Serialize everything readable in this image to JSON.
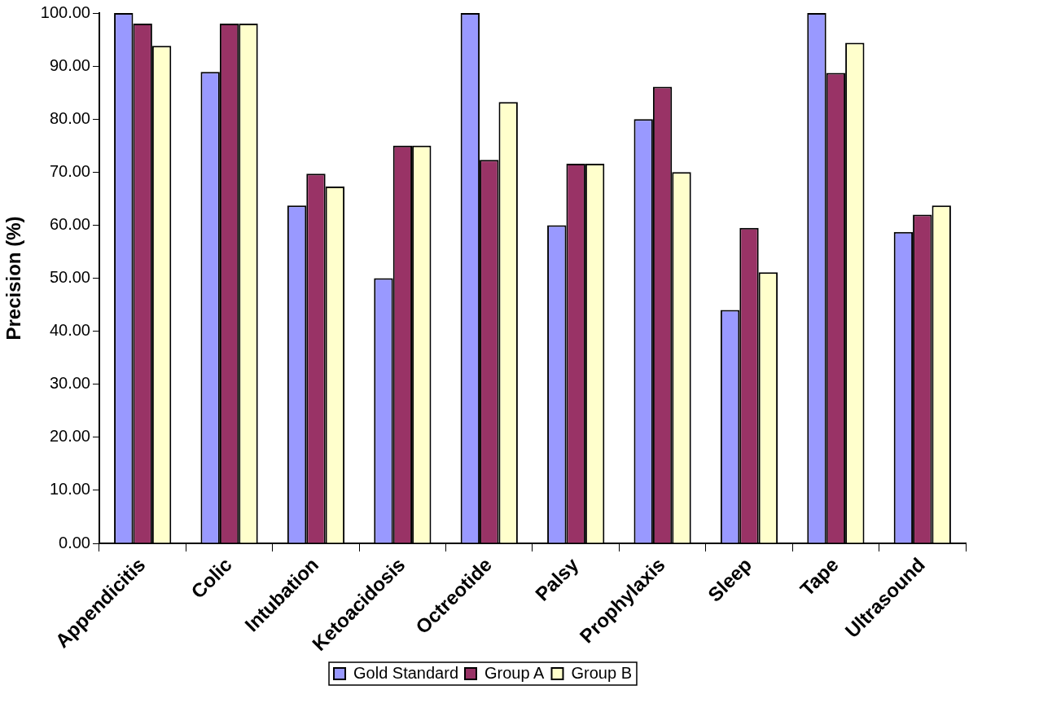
{
  "chart_data": {
    "type": "bar",
    "ylabel": "Precision (%)",
    "categories": [
      "Appendicitis",
      "Colic",
      "Intubation",
      "Ketoacidosis",
      "Octreotide",
      "Palsy",
      "Prophylaxis",
      "Sleep",
      "Tape",
      "Ultrasound"
    ],
    "series": [
      {
        "name": "Gold Standard",
        "color": "#9999ff",
        "values": [
          100,
          88.9,
          63.7,
          50,
          100,
          60,
          80,
          44,
          100,
          58.7
        ]
      },
      {
        "name": "Group A",
        "color": "#993366",
        "values": [
          98,
          98,
          69.7,
          75,
          72.3,
          71.6,
          86.1,
          59.5,
          88.7,
          62
        ]
      },
      {
        "name": "Group B",
        "color": "#ffffcc",
        "values": [
          93.8,
          98,
          67.3,
          75,
          83.2,
          71.6,
          70,
          51.1,
          94.4,
          63.7
        ]
      }
    ],
    "ylim": [
      0,
      100
    ],
    "yticks": [
      {
        "value": 0,
        "label": "0.00"
      },
      {
        "value": 10,
        "label": "10.00"
      },
      {
        "value": 20,
        "label": "20.00"
      },
      {
        "value": 30,
        "label": "30.00"
      },
      {
        "value": 40,
        "label": "40.00"
      },
      {
        "value": 50,
        "label": "50.00"
      },
      {
        "value": 60,
        "label": "60.00"
      },
      {
        "value": 70,
        "label": "70.00"
      },
      {
        "value": 80,
        "label": "80.00"
      },
      {
        "value": 90,
        "label": "90.00"
      },
      {
        "value": 100,
        "label": "100.00"
      }
    ],
    "grid": false,
    "legend": "bottom"
  }
}
